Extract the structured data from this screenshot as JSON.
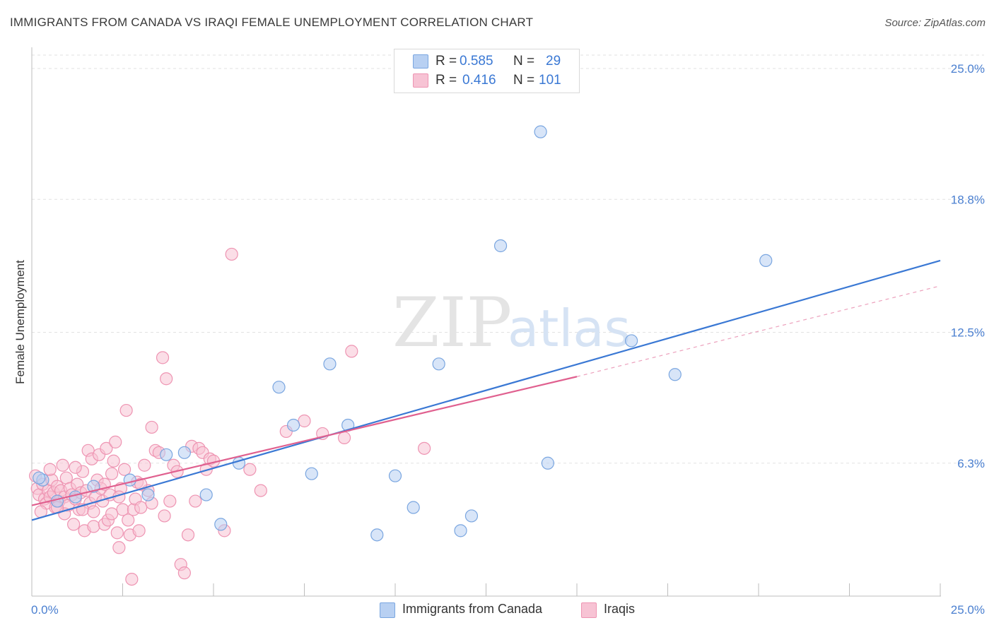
{
  "header": {
    "title": "IMMIGRANTS FROM CANADA VS IRAQI FEMALE UNEMPLOYMENT CORRELATION CHART",
    "source": "Source: ZipAtlas.com"
  },
  "legend": {
    "rows": [
      {
        "r_label": "R =",
        "r_value": "0.585",
        "n_label": "N =",
        "n_value": "29"
      },
      {
        "r_label": "R =",
        "r_value": "0.416",
        "n_label": "N =",
        "n_value": "101"
      }
    ]
  },
  "colors": {
    "canada_fill": "#b8d0f2",
    "canada_stroke": "#7aa6e0",
    "canada_line": "#3a78d4",
    "iraqi_fill": "#f7c3d4",
    "iraqi_stroke": "#ee94b2",
    "iraqi_line": "#e0608f",
    "grid": "#e2e2e2",
    "axis_text": "#4a7fd0"
  },
  "chart_data": {
    "type": "scatter",
    "title": "IMMIGRANTS FROM CANADA VS IRAQI FEMALE UNEMPLOYMENT CORRELATION CHART",
    "xlabel": "",
    "ylabel": "Female Unemployment",
    "xlim": [
      0,
      25
    ],
    "ylim": [
      0,
      25
    ],
    "x_ticks": [
      "0.0%",
      "25.0%"
    ],
    "y_ticks": [
      "6.3%",
      "12.5%",
      "18.8%",
      "25.0%"
    ],
    "grid": true,
    "legend_position": "top-center",
    "watermark": "ZIPatlas",
    "series": [
      {
        "name": "Immigrants from Canada",
        "r": 0.585,
        "n": 29,
        "trend": {
          "x": [
            0,
            25
          ],
          "y": [
            3.6,
            15.9
          ]
        },
        "points": [
          [
            0.3,
            5.5
          ],
          [
            0.7,
            4.5
          ],
          [
            1.2,
            4.7
          ],
          [
            1.7,
            5.2
          ],
          [
            2.7,
            5.5
          ],
          [
            3.2,
            4.8
          ],
          [
            3.7,
            6.7
          ],
          [
            4.2,
            6.8
          ],
          [
            4.8,
            4.8
          ],
          [
            5.2,
            3.4
          ],
          [
            5.7,
            6.3
          ],
          [
            6.8,
            9.9
          ],
          [
            7.2,
            8.1
          ],
          [
            7.7,
            5.8
          ],
          [
            8.2,
            11.0
          ],
          [
            8.7,
            8.1
          ],
          [
            9.5,
            2.9
          ],
          [
            10.0,
            5.7
          ],
          [
            10.5,
            4.2
          ],
          [
            11.2,
            11.0
          ],
          [
            11.8,
            3.1
          ],
          [
            12.1,
            3.8
          ],
          [
            12.9,
            16.6
          ],
          [
            14.0,
            22.0
          ],
          [
            14.2,
            6.3
          ],
          [
            16.5,
            12.1
          ],
          [
            17.7,
            10.5
          ],
          [
            20.2,
            15.9
          ],
          [
            0.2,
            5.6
          ]
        ]
      },
      {
        "name": "Iraqis",
        "r": 0.416,
        "n": 101,
        "trend": {
          "x": [
            0,
            15
          ],
          "y": [
            4.3,
            10.4
          ]
        },
        "trend_dashed": {
          "x": [
            15,
            25
          ],
          "y": [
            10.4,
            14.7
          ]
        },
        "points": [
          [
            0.1,
            5.7
          ],
          [
            0.15,
            5.1
          ],
          [
            0.2,
            4.8
          ],
          [
            0.3,
            5.3
          ],
          [
            0.35,
            4.6
          ],
          [
            0.4,
            4.4
          ],
          [
            0.45,
            5.0
          ],
          [
            0.5,
            4.7
          ],
          [
            0.55,
            5.5
          ],
          [
            0.6,
            4.9
          ],
          [
            0.65,
            4.2
          ],
          [
            0.7,
            5.2
          ],
          [
            0.75,
            4.5
          ],
          [
            0.8,
            5.0
          ],
          [
            0.85,
            6.2
          ],
          [
            0.9,
            4.7
          ],
          [
            0.95,
            5.6
          ],
          [
            1.0,
            4.3
          ],
          [
            1.05,
            5.1
          ],
          [
            1.1,
            4.8
          ],
          [
            1.15,
            3.4
          ],
          [
            1.2,
            4.6
          ],
          [
            1.25,
            5.3
          ],
          [
            1.3,
            4.1
          ],
          [
            1.35,
            4.9
          ],
          [
            1.4,
            5.9
          ],
          [
            1.45,
            3.1
          ],
          [
            1.5,
            5.0
          ],
          [
            1.55,
            6.9
          ],
          [
            1.6,
            4.4
          ],
          [
            1.65,
            6.5
          ],
          [
            1.7,
            3.3
          ],
          [
            1.75,
            4.7
          ],
          [
            1.8,
            5.5
          ],
          [
            1.85,
            6.7
          ],
          [
            1.9,
            5.1
          ],
          [
            1.95,
            4.5
          ],
          [
            2.0,
            3.4
          ],
          [
            2.05,
            7.0
          ],
          [
            2.1,
            3.6
          ],
          [
            2.15,
            4.8
          ],
          [
            2.2,
            5.8
          ],
          [
            2.25,
            6.4
          ],
          [
            2.3,
            7.3
          ],
          [
            2.35,
            3.0
          ],
          [
            2.4,
            2.3
          ],
          [
            2.45,
            5.1
          ],
          [
            2.5,
            4.1
          ],
          [
            2.55,
            6.0
          ],
          [
            2.6,
            8.8
          ],
          [
            2.65,
            3.6
          ],
          [
            2.7,
            2.9
          ],
          [
            2.75,
            0.8
          ],
          [
            2.8,
            4.1
          ],
          [
            2.85,
            4.6
          ],
          [
            2.9,
            5.4
          ],
          [
            2.95,
            3.1
          ],
          [
            3.0,
            4.2
          ],
          [
            3.1,
            6.2
          ],
          [
            3.2,
            5.0
          ],
          [
            3.3,
            8.0
          ],
          [
            3.4,
            6.9
          ],
          [
            3.5,
            6.8
          ],
          [
            3.6,
            11.3
          ],
          [
            3.65,
            3.8
          ],
          [
            3.7,
            10.3
          ],
          [
            3.8,
            4.5
          ],
          [
            3.9,
            6.2
          ],
          [
            4.0,
            5.9
          ],
          [
            4.1,
            1.5
          ],
          [
            4.2,
            1.1
          ],
          [
            4.3,
            2.9
          ],
          [
            4.4,
            7.1
          ],
          [
            4.5,
            4.5
          ],
          [
            4.6,
            7.0
          ],
          [
            4.7,
            6.8
          ],
          [
            4.8,
            6.0
          ],
          [
            4.9,
            6.5
          ],
          [
            5.0,
            6.4
          ],
          [
            5.3,
            3.1
          ],
          [
            5.5,
            16.2
          ],
          [
            6.0,
            6.0
          ],
          [
            6.3,
            5.0
          ],
          [
            7.0,
            7.8
          ],
          [
            7.5,
            8.3
          ],
          [
            8.0,
            7.7
          ],
          [
            8.6,
            7.5
          ],
          [
            8.8,
            11.6
          ],
          [
            10.8,
            7.0
          ],
          [
            0.25,
            4.0
          ],
          [
            0.5,
            6.0
          ],
          [
            0.9,
            3.9
          ],
          [
            1.2,
            6.1
          ],
          [
            1.4,
            4.1
          ],
          [
            1.7,
            4.0
          ],
          [
            2.0,
            5.3
          ],
          [
            2.2,
            3.9
          ],
          [
            2.4,
            4.7
          ],
          [
            3.0,
            5.3
          ],
          [
            3.3,
            4.4
          ],
          [
            0.7,
            4.2
          ]
        ]
      }
    ]
  },
  "bottom_legend": {
    "items": [
      {
        "label": "Immigrants from Canada"
      },
      {
        "label": "Iraqis"
      }
    ]
  }
}
